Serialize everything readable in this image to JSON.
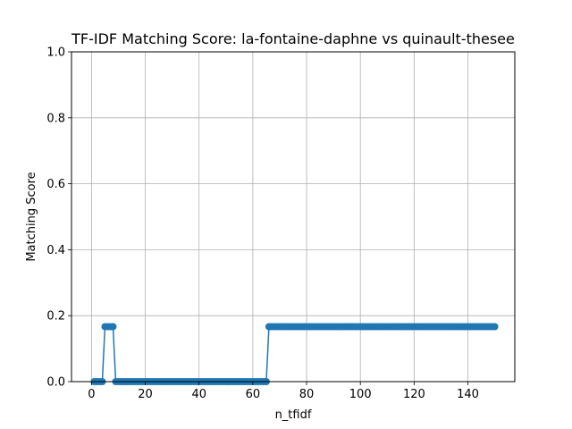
{
  "chart_data": {
    "type": "line",
    "title": "TF-IDF Matching Score: la-fontaine-daphne vs quinault-thesee",
    "xlabel": "n_tfidf",
    "ylabel": "Matching Score",
    "xlim": [
      -7.45,
      157.45
    ],
    "ylim": [
      0.0,
      1.0
    ],
    "xticks": [
      0,
      20,
      40,
      60,
      80,
      100,
      120,
      140
    ],
    "yticks": [
      0.0,
      0.2,
      0.4,
      0.6,
      0.8,
      1.0
    ],
    "xtick_labels": [
      "0",
      "20",
      "40",
      "60",
      "80",
      "100",
      "120",
      "140"
    ],
    "ytick_labels": [
      "0.0",
      "0.2",
      "0.4",
      "0.6",
      "0.8",
      "1.0"
    ],
    "grid": true,
    "series": [
      {
        "color": "#1f77b4",
        "marker": "circle",
        "x": [
          1,
          2,
          3,
          4,
          5,
          6,
          7,
          8,
          9,
          10,
          11,
          12,
          13,
          14,
          15,
          16,
          17,
          18,
          19,
          20,
          21,
          22,
          23,
          24,
          25,
          26,
          27,
          28,
          29,
          30,
          31,
          32,
          33,
          34,
          35,
          36,
          37,
          38,
          39,
          40,
          41,
          42,
          43,
          44,
          45,
          46,
          47,
          48,
          49,
          50,
          51,
          52,
          53,
          54,
          55,
          56,
          57,
          58,
          59,
          60,
          61,
          62,
          63,
          64,
          65,
          66,
          67,
          68,
          69,
          70,
          71,
          72,
          73,
          74,
          75,
          76,
          77,
          78,
          79,
          80,
          81,
          82,
          83,
          84,
          85,
          86,
          87,
          88,
          89,
          90,
          91,
          92,
          93,
          94,
          95,
          96,
          97,
          98,
          99,
          100,
          101,
          102,
          103,
          104,
          105,
          106,
          107,
          108,
          109,
          110,
          111,
          112,
          113,
          114,
          115,
          116,
          117,
          118,
          119,
          120,
          121,
          122,
          123,
          124,
          125,
          126,
          127,
          128,
          129,
          130,
          131,
          132,
          133,
          134,
          135,
          136,
          137,
          138,
          139,
          140,
          141,
          142,
          143,
          144,
          145,
          146,
          147,
          148,
          149,
          150
        ],
        "values": [
          0,
          0,
          0,
          0,
          0.1667,
          0.1667,
          0.1667,
          0.1667,
          0,
          0,
          0,
          0,
          0,
          0,
          0,
          0,
          0,
          0,
          0,
          0,
          0,
          0,
          0,
          0,
          0,
          0,
          0,
          0,
          0,
          0,
          0,
          0,
          0,
          0,
          0,
          0,
          0,
          0,
          0,
          0,
          0,
          0,
          0,
          0,
          0,
          0,
          0,
          0,
          0,
          0,
          0,
          0,
          0,
          0,
          0,
          0,
          0,
          0,
          0,
          0,
          0,
          0,
          0,
          0,
          0,
          0.1667,
          0.1667,
          0.1667,
          0.1667,
          0.1667,
          0.1667,
          0.1667,
          0.1667,
          0.1667,
          0.1667,
          0.1667,
          0.1667,
          0.1667,
          0.1667,
          0.1667,
          0.1667,
          0.1667,
          0.1667,
          0.1667,
          0.1667,
          0.1667,
          0.1667,
          0.1667,
          0.1667,
          0.1667,
          0.1667,
          0.1667,
          0.1667,
          0.1667,
          0.1667,
          0.1667,
          0.1667,
          0.1667,
          0.1667,
          0.1667,
          0.1667,
          0.1667,
          0.1667,
          0.1667,
          0.1667,
          0.1667,
          0.1667,
          0.1667,
          0.1667,
          0.1667,
          0.1667,
          0.1667,
          0.1667,
          0.1667,
          0.1667,
          0.1667,
          0.1667,
          0.1667,
          0.1667,
          0.1667,
          0.1667,
          0.1667,
          0.1667,
          0.1667,
          0.1667,
          0.1667,
          0.1667,
          0.1667,
          0.1667,
          0.1667,
          0.1667,
          0.1667,
          0.1667,
          0.1667,
          0.1667,
          0.1667,
          0.1667,
          0.1667,
          0.1667,
          0.1667,
          0.1667,
          0.1667,
          0.1667,
          0.1667,
          0.1667,
          0.1667,
          0.1667,
          0.1667,
          0.1667,
          0.1667
        ]
      }
    ]
  }
}
